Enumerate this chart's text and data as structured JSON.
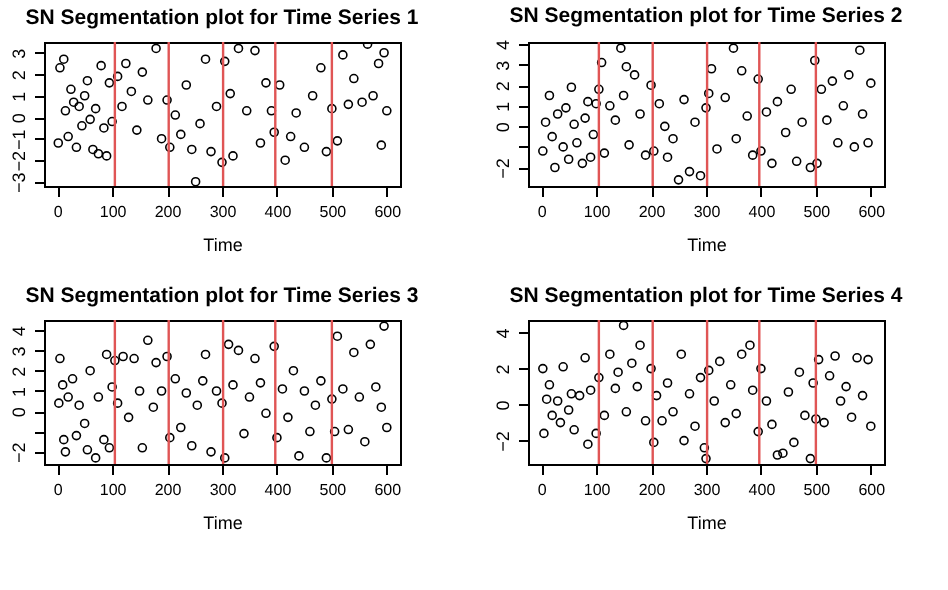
{
  "chart_data": [
    {
      "type": "scatter",
      "title": "SN Segmentation plot for Time Series 1",
      "xlabel": "Time",
      "xlim": [
        -24,
        624
      ],
      "xticks": [
        0,
        100,
        200,
        300,
        400,
        500,
        600
      ],
      "ylim": [
        -3.2,
        3.5
      ],
      "yticks": [
        -3,
        -2,
        -1,
        0,
        1,
        2,
        3
      ],
      "marker": "circle",
      "grid": false,
      "series": [
        {
          "color": "#000000",
          "x": [
            2,
            5,
            12,
            15,
            20,
            25,
            30,
            35,
            40,
            45,
            50,
            55,
            60,
            65,
            70,
            75,
            80,
            85,
            90,
            95,
            100,
            110,
            118,
            125,
            135,
            145,
            155,
            165,
            180,
            190,
            200,
            205,
            215,
            225,
            235,
            245,
            252,
            260,
            270,
            280,
            290,
            300,
            305,
            315,
            320,
            330,
            345,
            360,
            370,
            380,
            390,
            395,
            405,
            415,
            425,
            435,
            450,
            465,
            480,
            490,
            500,
            510,
            520,
            530,
            540,
            555,
            565,
            575,
            585,
            590,
            595,
            600
          ],
          "values": [
            -1.2,
            2.3,
            2.7,
            0.3,
            -0.9,
            1.3,
            0.7,
            -1.4,
            0.5,
            -0.4,
            1,
            1.7,
            -0.1,
            -1.5,
            0.4,
            -1.7,
            2.4,
            -0.5,
            -1.8,
            1.6,
            -0.2,
            1.9,
            0.5,
            2.5,
            1.2,
            -0.6,
            2.1,
            0.8,
            3.2,
            -1,
            0.8,
            -1.4,
            0.1,
            -0.8,
            1.5,
            -1.5,
            -3,
            -0.3,
            2.7,
            -1.6,
            0.5,
            -2.1,
            2.6,
            1.1,
            -1.8,
            3.2,
            0.3,
            3.1,
            -1.2,
            1.6,
            0.3,
            -0.7,
            1.5,
            -2,
            -0.9,
            0.2,
            -1.4,
            1,
            2.3,
            -1.6,
            0.4,
            -1.1,
            2.9,
            0.6,
            1.8,
            0.7,
            3.4,
            1,
            2.5,
            -1.3,
            3,
            0.3
          ]
        }
      ],
      "ref_lines": [
        {
          "axis": "x",
          "value": 105,
          "color": "#e05555"
        },
        {
          "axis": "x",
          "value": 203,
          "color": "#e05555"
        },
        {
          "axis": "x",
          "value": 302,
          "color": "#e05555"
        },
        {
          "axis": "x",
          "value": 397,
          "color": "#e05555"
        },
        {
          "axis": "x",
          "value": 500,
          "color": "#e05555"
        }
      ]
    },
    {
      "type": "scatter",
      "title": "SN Segmentation plot for Time Series 2",
      "xlabel": "Time",
      "xlim": [
        -24,
        624
      ],
      "xticks": [
        0,
        100,
        200,
        300,
        400,
        500,
        600
      ],
      "ylim": [
        -2.9,
        4.1
      ],
      "yticks": [
        -2,
        {
          "value": -1,
          "label": null
        },
        0,
        1,
        2,
        3,
        4
      ],
      "marker": "circle",
      "grid": false,
      "series": [
        {
          "color": "#000000",
          "x": [
            3,
            8,
            15,
            20,
            25,
            30,
            40,
            45,
            50,
            55,
            60,
            65,
            75,
            80,
            85,
            90,
            95,
            100,
            105,
            110,
            115,
            125,
            135,
            145,
            150,
            155,
            160,
            170,
            180,
            190,
            200,
            205,
            215,
            225,
            230,
            240,
            250,
            260,
            270,
            280,
            290,
            300,
            305,
            310,
            320,
            335,
            350,
            355,
            365,
            375,
            385,
            395,
            400,
            410,
            420,
            430,
            445,
            455,
            465,
            475,
            490,
            498,
            502,
            510,
            520,
            530,
            540,
            550,
            560,
            570,
            580,
            585,
            595,
            600
          ],
          "values": [
            -1.2,
            0.2,
            1.5,
            -0.5,
            -2,
            0.6,
            -1,
            0.9,
            -1.6,
            1.9,
            0.1,
            -0.8,
            -1.8,
            0.4,
            1.2,
            -1.5,
            -0.4,
            1.1,
            1.8,
            3.1,
            -1.3,
            1,
            0.3,
            3.8,
            1.5,
            2.9,
            -0.9,
            2.5,
            0.6,
            -1.4,
            2,
            -1.2,
            1.1,
            0,
            -1.5,
            -0.6,
            -2.6,
            1.3,
            -2.2,
            0.2,
            -2.4,
            0.9,
            1.6,
            2.8,
            -1.1,
            1.4,
            3.8,
            -0.6,
            2.7,
            0.5,
            -1.4,
            2.3,
            -1.2,
            0.7,
            -1.8,
            1.2,
            -0.3,
            1.8,
            -1.7,
            0.2,
            -2,
            3.2,
            -1.8,
            1.8,
            0.3,
            2.2,
            -0.8,
            1,
            2.5,
            -1,
            3.7,
            0.6,
            -0.8,
            2.1
          ]
        }
      ],
      "ref_lines": [
        {
          "axis": "x",
          "value": 105,
          "color": "#e05555"
        },
        {
          "axis": "x",
          "value": 203,
          "color": "#e05555"
        },
        {
          "axis": "x",
          "value": 302,
          "color": "#e05555"
        },
        {
          "axis": "x",
          "value": 397,
          "color": "#e05555"
        },
        {
          "axis": "x",
          "value": 500,
          "color": "#e05555"
        }
      ]
    },
    {
      "type": "scatter",
      "title": "SN Segmentation plot for Time Series 3",
      "xlabel": "Time",
      "xlim": [
        -24,
        624
      ],
      "xticks": [
        0,
        100,
        200,
        300,
        400,
        500,
        600
      ],
      "ylim": [
        -2.6,
        4.5
      ],
      "yticks": [
        -2,
        {
          "value": -1,
          "label": null
        },
        0,
        1,
        2,
        3,
        4
      ],
      "marker": "circle",
      "grid": false,
      "series": [
        {
          "color": "#000000",
          "x": [
            3,
            5,
            10,
            12,
            15,
            20,
            28,
            35,
            40,
            50,
            55,
            60,
            70,
            75,
            85,
            90,
            95,
            100,
            105,
            110,
            120,
            130,
            140,
            150,
            155,
            165,
            175,
            180,
            190,
            200,
            205,
            215,
            225,
            235,
            245,
            255,
            265,
            270,
            280,
            290,
            300,
            305,
            312,
            320,
            330,
            340,
            350,
            360,
            370,
            380,
            395,
            400,
            410,
            420,
            430,
            440,
            450,
            460,
            470,
            480,
            490,
            500,
            505,
            510,
            520,
            530,
            540,
            550,
            560,
            570,
            580,
            590,
            595,
            600
          ],
          "values": [
            0.4,
            2.6,
            1.3,
            -1.4,
            -2,
            0.7,
            1.6,
            -1.2,
            0.3,
            -0.6,
            -1.9,
            2,
            -2.3,
            0.7,
            -1.4,
            2.8,
            -1.8,
            1.2,
            2.5,
            0.4,
            2.7,
            -0.3,
            2.6,
            1,
            -1.8,
            3.5,
            0.2,
            2.4,
            1,
            2.7,
            -1.3,
            1.6,
            -0.8,
            0.9,
            -1.7,
            0.3,
            1.5,
            2.8,
            -2,
            1,
            0.4,
            -2.3,
            3.3,
            1.3,
            3,
            -1.1,
            0.7,
            2.6,
            1.4,
            -0.1,
            3.2,
            -1.3,
            1.1,
            -0.3,
            2,
            -2.2,
            1,
            -1,
            0.3,
            1.5,
            -2.3,
            0.6,
            -1,
            3.7,
            1.1,
            -0.9,
            2.9,
            0.7,
            -1.5,
            3.3,
            1.2,
            0.2,
            4.2,
            -0.8
          ]
        }
      ],
      "ref_lines": [
        {
          "axis": "x",
          "value": 105,
          "color": "#e05555"
        },
        {
          "axis": "x",
          "value": 203,
          "color": "#e05555"
        },
        {
          "axis": "x",
          "value": 302,
          "color": "#e05555"
        },
        {
          "axis": "x",
          "value": 397,
          "color": "#e05555"
        },
        {
          "axis": "x",
          "value": 500,
          "color": "#e05555"
        }
      ]
    },
    {
      "type": "scatter",
      "title": "SN Segmentation plot for Time Series 4",
      "xlabel": "Time",
      "xlim": [
        -24,
        624
      ],
      "xticks": [
        0,
        100,
        200,
        300,
        400,
        500,
        600
      ],
      "ylim": [
        -3.3,
        4.7
      ],
      "yticks": [
        -2,
        0,
        2,
        4
      ],
      "marker": "circle",
      "grid": false,
      "series": [
        {
          "color": "#000000",
          "x": [
            3,
            5,
            10,
            15,
            20,
            30,
            35,
            40,
            50,
            55,
            60,
            70,
            80,
            85,
            90,
            100,
            105,
            115,
            125,
            135,
            140,
            150,
            155,
            165,
            175,
            180,
            190,
            200,
            205,
            210,
            220,
            230,
            240,
            255,
            260,
            270,
            280,
            290,
            297,
            300,
            305,
            315,
            325,
            335,
            345,
            355,
            365,
            380,
            385,
            395,
            400,
            410,
            420,
            430,
            440,
            450,
            460,
            470,
            480,
            490,
            495,
            500,
            505,
            515,
            525,
            535,
            545,
            555,
            565,
            575,
            585,
            595,
            600
          ],
          "values": [
            2,
            -1.6,
            0.3,
            1.1,
            -0.6,
            0.2,
            -1,
            2.1,
            -0.3,
            0.6,
            -1.4,
            0.5,
            2.6,
            -2.2,
            0.8,
            -1.6,
            1.5,
            -0.6,
            2.8,
            0.9,
            1.8,
            4.4,
            -0.4,
            2.3,
            1,
            3.3,
            -0.9,
            2,
            -2.1,
            0.5,
            -0.9,
            1.2,
            -0.4,
            2.8,
            -2,
            0.6,
            -1.2,
            1.5,
            -2.4,
            -3,
            1.9,
            0.2,
            2.4,
            -1,
            1.1,
            -0.5,
            2.8,
            3.3,
            0.8,
            -1.5,
            2,
            0.2,
            -1.1,
            -2.8,
            -2.7,
            0.7,
            -2.1,
            1.8,
            -0.6,
            -3,
            1.2,
            -0.8,
            2.5,
            -1,
            1.6,
            2.7,
            0.2,
            1,
            -0.7,
            2.6,
            0.5,
            2.5,
            -1.2
          ]
        }
      ],
      "ref_lines": [
        {
          "axis": "x",
          "value": 105,
          "color": "#e05555"
        },
        {
          "axis": "x",
          "value": 203,
          "color": "#e05555"
        },
        {
          "axis": "x",
          "value": 302,
          "color": "#e05555"
        },
        {
          "axis": "x",
          "value": 397,
          "color": "#e05555"
        },
        {
          "axis": "x",
          "value": 500,
          "color": "#e05555"
        }
      ]
    }
  ]
}
